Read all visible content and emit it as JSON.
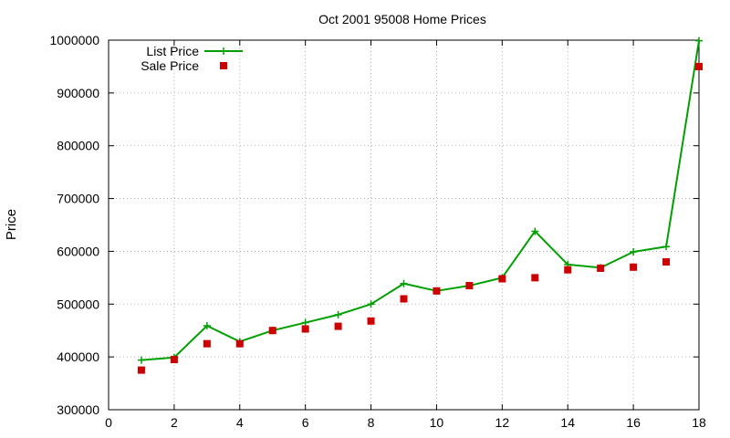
{
  "chart_data": {
    "type": "line",
    "title": "Oct 2001 95008 Home Prices",
    "xlabel": "",
    "ylabel": "Price",
    "xlim": [
      0,
      18
    ],
    "ylim": [
      300000,
      1000000
    ],
    "xticks": [
      0,
      2,
      4,
      6,
      8,
      10,
      12,
      14,
      16,
      18
    ],
    "yticks": [
      300000,
      400000,
      500000,
      600000,
      700000,
      800000,
      900000,
      1000000
    ],
    "grid": true,
    "legend_position": "top-left",
    "x": [
      1,
      2,
      3,
      4,
      5,
      6,
      7,
      8,
      9,
      10,
      11,
      12,
      13,
      14,
      15,
      16,
      17,
      18
    ],
    "series": [
      {
        "name": "List Price",
        "type": "linespoints",
        "color": "#00a000",
        "marker": "plus",
        "values": [
          394000,
          399000,
          459000,
          429000,
          450000,
          465000,
          480000,
          500000,
          539000,
          525000,
          535000,
          550000,
          638000,
          575000,
          569000,
          599000,
          609000,
          999000
        ]
      },
      {
        "name": "Sale Price",
        "type": "points",
        "color": "#cc0000",
        "marker": "square",
        "values": [
          375000,
          395000,
          425000,
          425000,
          450000,
          453000,
          458000,
          468000,
          510000,
          525000,
          535000,
          548000,
          550000,
          565000,
          568000,
          570000,
          580000,
          950000
        ]
      }
    ]
  }
}
